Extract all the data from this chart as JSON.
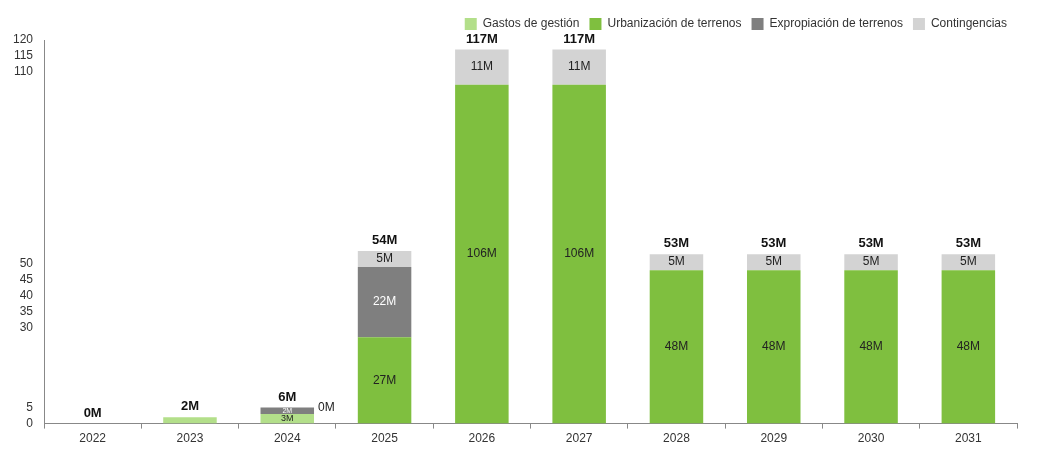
{
  "chart_data": {
    "type": "bar",
    "stacked": true,
    "categories": [
      "2022",
      "2023",
      "2024",
      "2025",
      "2026",
      "2027",
      "2028",
      "2029",
      "2030",
      "2031"
    ],
    "series": [
      {
        "name": "Gastos de gestión",
        "color": "#b3df8a",
        "values": [
          0,
          2,
          3,
          0,
          0,
          0,
          0,
          0,
          0,
          0
        ],
        "value_labels": [
          null,
          null,
          "3M",
          null,
          null,
          null,
          null,
          null,
          null,
          null
        ]
      },
      {
        "name": "Urbanización de terrenos",
        "color": "#7fbf3f",
        "values": [
          0,
          0,
          0,
          27,
          106,
          106,
          48,
          48,
          48,
          48
        ],
        "value_labels": [
          null,
          null,
          null,
          "27M",
          "106M",
          "106M",
          "48M",
          "48M",
          "48M",
          "48M"
        ]
      },
      {
        "name": "Expropiación de terrenos",
        "color": "#7f7f7f",
        "values": [
          0,
          0,
          2,
          22,
          0,
          0,
          0,
          0,
          0,
          0
        ],
        "value_labels": [
          null,
          null,
          "2M",
          "22M",
          null,
          null,
          null,
          null,
          null,
          null
        ]
      },
      {
        "name": "Contingencias",
        "color": "#d3d3d3",
        "values": [
          0,
          0,
          0,
          5,
          11,
          11,
          5,
          5,
          5,
          5
        ],
        "value_labels": [
          null,
          null,
          null,
          "5M",
          "11M",
          "11M",
          "5M",
          "5M",
          "5M",
          "5M"
        ]
      }
    ],
    "totals": [
      "0M",
      "2M",
      "6M",
      "54M",
      "117M",
      "117M",
      "53M",
      "53M",
      "53M",
      "53M"
    ],
    "ylim": [
      0,
      120
    ],
    "yticks": [
      0,
      5,
      30,
      35,
      40,
      45,
      50,
      110,
      115,
      120
    ],
    "annotations": [
      {
        "text": "0M",
        "x": "2024",
        "y": 5
      }
    ],
    "legend": "top right",
    "grid": false
  }
}
